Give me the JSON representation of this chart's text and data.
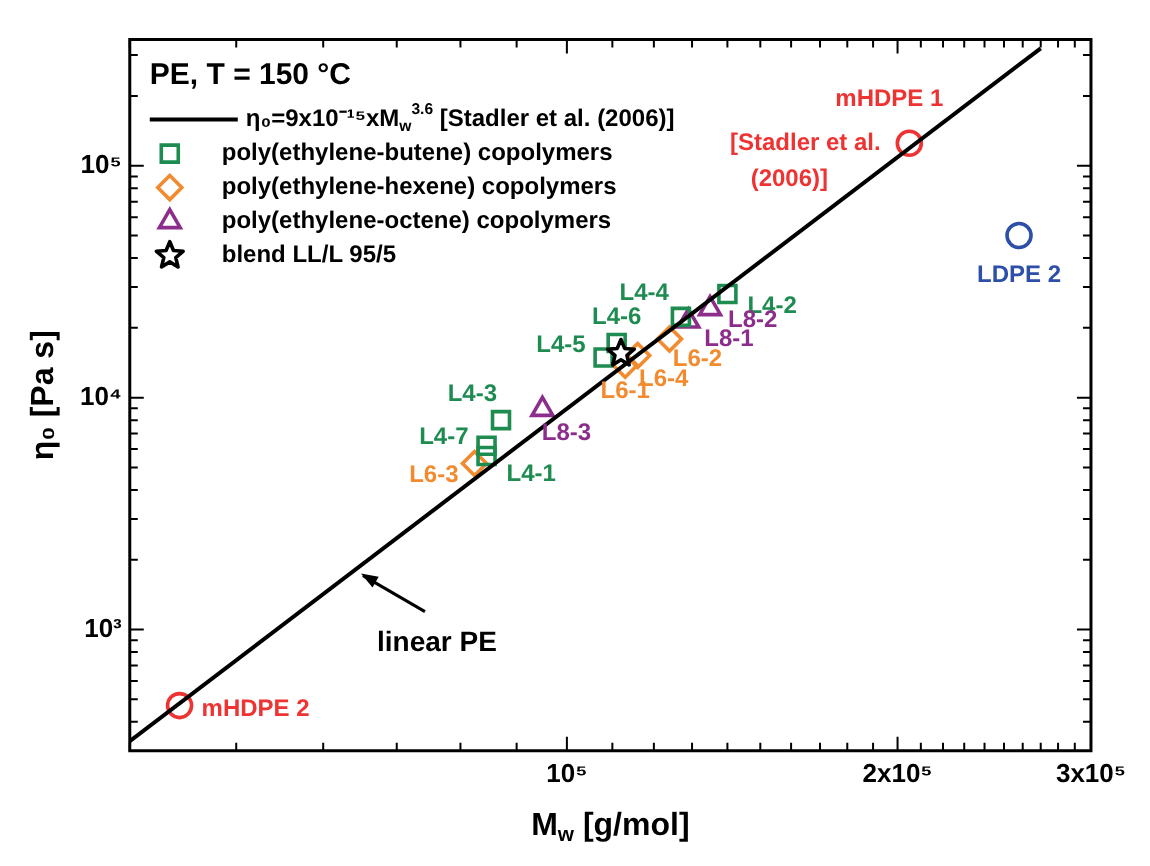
{
  "chart_data": {
    "type": "scatter",
    "title": "PE, T = 150 °C",
    "xlabel": "M$_{w}$ [g/mol]",
    "ylabel": "η₀ [Pa s]",
    "log": "xy",
    "legend": "top left",
    "xlim": [
      40000,
      300000
    ],
    "ylim": [
      300,
      350000
    ],
    "xticks": [
      {
        "value": 40000,
        "label": null
      },
      {
        "value": 50000,
        "label": null
      },
      {
        "value": 60000,
        "label": null
      },
      {
        "value": 70000,
        "label": null
      },
      {
        "value": 80000,
        "label": null
      },
      {
        "value": 90000,
        "label": null
      },
      {
        "value": 100000,
        "label": "10⁵"
      },
      {
        "value": 110000,
        "label": null
      },
      {
        "value": 120000,
        "label": null
      },
      {
        "value": 130000,
        "label": null
      },
      {
        "value": 140000,
        "label": null
      },
      {
        "value": 150000,
        "label": null
      },
      {
        "value": 160000,
        "label": null
      },
      {
        "value": 170000,
        "label": null
      },
      {
        "value": 180000,
        "label": null
      },
      {
        "value": 190000,
        "label": null
      },
      {
        "value": 200000,
        "label": "2x10⁵"
      },
      {
        "value": 210000,
        "label": null
      },
      {
        "value": 220000,
        "label": null
      },
      {
        "value": 230000,
        "label": null
      },
      {
        "value": 240000,
        "label": null
      },
      {
        "value": 250000,
        "label": null
      },
      {
        "value": 260000,
        "label": null
      },
      {
        "value": 270000,
        "label": null
      },
      {
        "value": 280000,
        "label": null
      },
      {
        "value": 290000,
        "label": null
      },
      {
        "value": 300000,
        "label": "3x10⁵"
      }
    ],
    "yticks": [
      {
        "value": 400,
        "label": null
      },
      {
        "value": 500,
        "label": null
      },
      {
        "value": 600,
        "label": null
      },
      {
        "value": 700,
        "label": null
      },
      {
        "value": 800,
        "label": null
      },
      {
        "value": 900,
        "label": null
      },
      {
        "value": 1000,
        "label": "10³"
      },
      {
        "value": 2000,
        "label": null
      },
      {
        "value": 3000,
        "label": null
      },
      {
        "value": 4000,
        "label": null
      },
      {
        "value": 5000,
        "label": null
      },
      {
        "value": 6000,
        "label": null
      },
      {
        "value": 7000,
        "label": null
      },
      {
        "value": 8000,
        "label": null
      },
      {
        "value": 9000,
        "label": null
      },
      {
        "value": 10000,
        "label": "10⁴"
      },
      {
        "value": 20000,
        "label": null
      },
      {
        "value": 30000,
        "label": null
      },
      {
        "value": 40000,
        "label": null
      },
      {
        "value": 50000,
        "label": null
      },
      {
        "value": 60000,
        "label": null
      },
      {
        "value": 70000,
        "label": null
      },
      {
        "value": 80000,
        "label": null
      },
      {
        "value": 90000,
        "label": null
      },
      {
        "value": 100000,
        "label": "10⁵"
      },
      {
        "value": 200000,
        "label": null
      },
      {
        "value": 300000,
        "label": null
      }
    ],
    "series": [
      {
        "type": "line",
        "name": "η₀=9x10⁻¹⁵xM$_{w}$$^{3.6}$ [Stadler et al. (2006)]",
        "color": "#000000",
        "line_style": "solid",
        "marker": "none",
        "x": [
          40000,
          270000
        ],
        "values": [
          330,
          321000
        ]
      },
      {
        "name": "poly(ethylene-butene) copolymers",
        "color": "#1e8c50",
        "marker": "square",
        "x": [
          84500,
          140000,
          87100,
          127000,
          108000,
          111000,
          84500
        ],
        "values": [
          5600,
          28000,
          8000,
          22300,
          14900,
          17200,
          6200
        ],
        "value_labels": [
          "L4-1",
          "L4-2",
          "L4-3",
          "L4-4",
          "L4-5",
          "L4-6",
          "L4-7"
        ]
      },
      {
        "name": "poly(ethylene-hexene) copolymers",
        "color": "#f28a2e",
        "marker": "diamond",
        "x": [
          113000,
          124000,
          82400,
          116000
        ],
        "values": [
          13800,
          17900,
          5200,
          15200
        ],
        "value_labels": [
          "L6-1",
          "L6-2",
          "L6-3",
          "L6-4"
        ]
      },
      {
        "name": "poly(ethylene-octene) copolymers",
        "color": "#8c2d8c",
        "marker": "triangle",
        "x": [
          129000,
          135000,
          95000
        ],
        "values": [
          21400,
          24200,
          8900
        ],
        "value_labels": [
          "L8-1",
          "L8-2",
          "L8-3"
        ]
      },
      {
        "name": "blend LL/L 95/5",
        "color": "#000000",
        "marker": "star",
        "x": [
          112000
        ],
        "values": [
          15500
        ]
      },
      {
        "color": "#ee3333",
        "marker": "circle",
        "x": [
          44400,
          205000
        ],
        "values": [
          470,
          125000
        ],
        "value_labels": [
          "mHDPE 2",
          "mHDPE 1"
        ]
      },
      {
        "color": "#2e4fa8",
        "marker": "circle",
        "x": [
          258000
        ],
        "values": [
          50000
        ],
        "value_labels": [
          "LDPE 2"
        ]
      }
    ],
    "annotations": [
      {
        "text": "[Stadler et al. (2006)]",
        "x": 205000,
        "y": 125000
      },
      {
        "text": "linear PE",
        "x": 64400,
        "y": 1850
      }
    ]
  }
}
